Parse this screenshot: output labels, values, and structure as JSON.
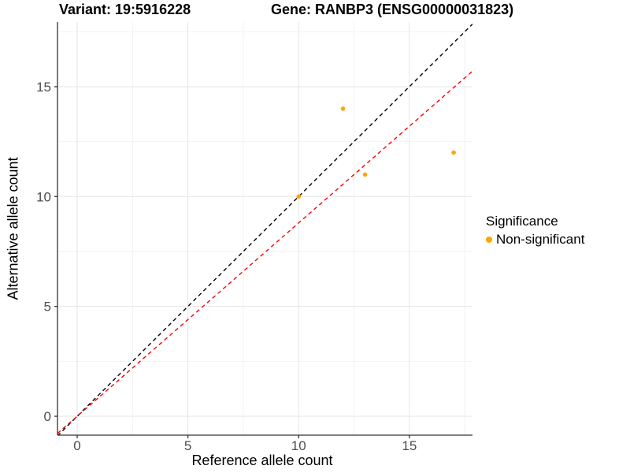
{
  "titles": {
    "variant": "Variant: 19:5916228",
    "gene": "Gene: RANBP3 (ENSG00000031823)"
  },
  "chart_data": {
    "type": "scatter",
    "xlabel": "Reference allele count",
    "ylabel": "Alternative allele count",
    "xticks": [
      0,
      5,
      10,
      15
    ],
    "yticks": [
      0,
      5,
      10,
      15
    ],
    "minor_xticks": [
      2.5,
      7.5,
      12.5,
      17.5
    ],
    "minor_yticks": [
      2.5,
      7.5,
      12.5,
      17.5
    ],
    "xlim": [
      -0.89,
      17.85
    ],
    "ylim": [
      -0.86,
      17.94
    ],
    "grid": true,
    "series": [
      {
        "name": "Non-significant",
        "color": "#FFA500",
        "points": [
          {
            "x": 10,
            "y": 10
          },
          {
            "x": 12,
            "y": 14
          },
          {
            "x": 13,
            "y": 11
          },
          {
            "x": 17,
            "y": 12
          }
        ]
      }
    ],
    "lines": [
      {
        "name": "identity-line",
        "slope": 1,
        "intercept": 0,
        "color": "#000000",
        "style": "dashed"
      },
      {
        "name": "ratio-line",
        "slope": 0.88,
        "intercept": 0,
        "color": "#FF0000",
        "style": "dashed"
      }
    ],
    "legend": {
      "title": "Significance",
      "position": "right",
      "entries": [
        {
          "label": "Non-significant",
          "color": "#FFA500"
        }
      ]
    },
    "style": {
      "point_color": "#FFA500",
      "axis_line_color": "#333333",
      "tick_label_color": "#4d4d4d",
      "grid_major_color": "#e5e5e5",
      "grid_minor_color": "#f2f2f2"
    }
  }
}
